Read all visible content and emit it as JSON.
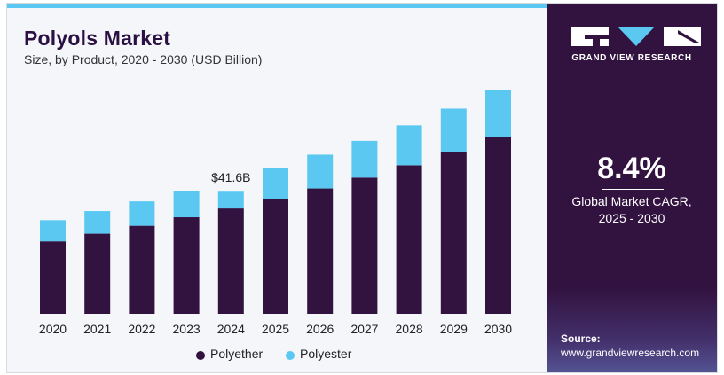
{
  "title": "Polyols Market",
  "subtitle": "Size, by Product, 2020 - 2030 (USD Billion)",
  "chart_data": {
    "type": "bar",
    "stacked": true,
    "title": "Polyols Market",
    "subtitle": "Size, by Product, 2020 - 2030 (USD Billion)",
    "categories": [
      "2020",
      "2021",
      "2022",
      "2023",
      "2024",
      "2025",
      "2026",
      "2027",
      "2028",
      "2029",
      "2030"
    ],
    "series": [
      {
        "name": "Polyether",
        "color": "#32123f",
        "values": [
          24.7,
          27.3,
          30.0,
          32.9,
          35.9,
          39.2,
          42.7,
          46.4,
          50.6,
          55.2,
          60.2
        ]
      },
      {
        "name": "Polyester",
        "color": "#5bc8f2",
        "values": [
          7.2,
          7.7,
          8.3,
          8.8,
          5.7,
          10.6,
          11.5,
          12.5,
          13.6,
          14.7,
          15.9
        ]
      }
    ],
    "annotations": [
      {
        "category": "2024",
        "text": "$41.6B"
      }
    ],
    "legend_position": "bottom",
    "grid": false,
    "ylim": [
      0,
      80
    ]
  },
  "legend": [
    {
      "name": "Polyether",
      "color": "#32123f"
    },
    {
      "name": "Polyester",
      "color": "#5bc8f2"
    }
  ],
  "panel": {
    "brand": "GRAND VIEW RESEARCH",
    "cagr_value": "8.4%",
    "cagr_label_line1": "Global Market CAGR,",
    "cagr_label_line2": "2025 - 2030",
    "source_label": "Source:",
    "source_url": "www.grandviewresearch.com"
  },
  "colors": {
    "accent": "#5bc8f2",
    "brand_dark": "#32123f"
  }
}
